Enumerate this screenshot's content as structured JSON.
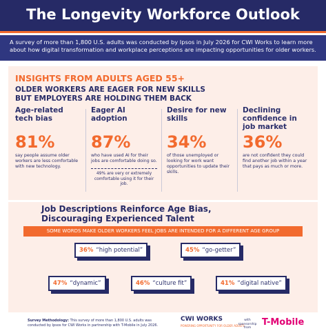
{
  "header": {
    "title": "The Longevity Workforce Outlook",
    "intro": "A survey of more than 1,800 U.S. adults was conducted by Ipsos in July 2026 for CWI Works to learn more about how digital transformation and workplace perceptions are impacting opportunities for older workers."
  },
  "insights": {
    "heading": "INSIGHTS FROM ADULTS AGED 55+",
    "subheading": "OLDER WORKERS ARE EAGER FOR NEW SKILLS BUT EMPLOYERS ARE HOLDING THEM BACK",
    "stats": [
      {
        "title": "Age-related tech bias",
        "value": "81%",
        "text": "say people assume older workers are less comfortable with new technology."
      },
      {
        "title": "Eager AI adoption",
        "value": "87%",
        "text": "who have used AI for their jobs are comfortable doing so.",
        "note": "49% are very or extremely comfortable using it for their job."
      },
      {
        "title": "Desire for new skills",
        "value": "34%",
        "text": "of those unemployed or looking for work want opportunities to update their skills."
      },
      {
        "title": "Declining confidence in job market",
        "value": "36%",
        "text": "are not confident they could find another job within a year that pays as much or more."
      }
    ]
  },
  "words": {
    "title": "Job Descriptions Reinforce Age Bias, Discouraging Experienced Talent",
    "banner": "SOME WORDS MAKE OLDER WORKERS FEEL JOBS ARE INTENDED FOR A DIFFERENT AGE GROUP",
    "items": [
      {
        "percent": "36%",
        "word": "“high potential”"
      },
      {
        "percent": "45%",
        "word": "“go-getter”"
      },
      {
        "percent": "47%",
        "word": "“dynamic”"
      },
      {
        "percent": "46%",
        "word": "“culture fit”"
      },
      {
        "percent": "41%",
        "word": "“digital native”"
      }
    ]
  },
  "footer": {
    "methodology_label": "Survey Methodology:",
    "methodology": "This survey of more than 1,800 U.S. adults was conducted by Ipsos for CWI Works in partnership with T-Mobile in July 2026.",
    "logo": "CWI WORKS",
    "tagline": "POWERING OPPORTUNITY FOR OLDER ADULTS",
    "sponsorship": "with sponsorship from",
    "sponsor": "T-Mobile"
  }
}
